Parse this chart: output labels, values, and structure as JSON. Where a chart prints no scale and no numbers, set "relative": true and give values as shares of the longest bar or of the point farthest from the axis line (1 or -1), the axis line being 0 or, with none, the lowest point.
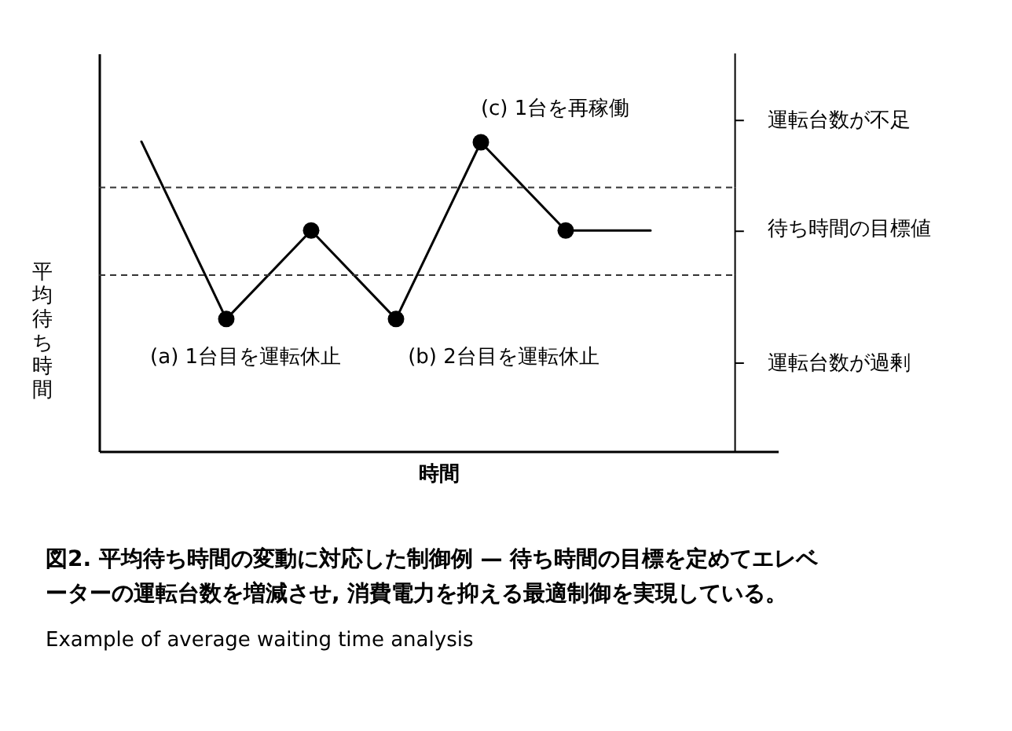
{
  "chart_data": {
    "type": "line",
    "relative": true,
    "xlabel": "時間",
    "ylabel": "平均待ち時間",
    "categories": [
      null,
      null,
      null,
      null,
      null,
      null,
      null
    ],
    "values": [
      1,
      0.427,
      0.713,
      0.427,
      0.998,
      0.713,
      0.713
    ],
    "color": "#000000",
    "marker": "circle",
    "line_style": "solid",
    "ref_lines": [
      {
        "axis": "y",
        "value": 0.852,
        "line_style": "dashed"
      },
      {
        "axis": "y",
        "value": 0.569,
        "line_style": "dashed"
      }
    ],
    "annotations": [
      "(a) 1台目を運転休止",
      "(b) 2台目を運転休止",
      "(c) 1台を再稼働",
      "運転台数が不足",
      "待ち時間の目標値",
      "運転台数が過剰",
      "Example of average waiting time analysis"
    ],
    "title": "図2. 平均待ち時間の変動に対応した制御例 — 待ち時間の目標を定めてエレベーターの運転台数を増減させ, 消費電力を抑える最適制御を実現している。"
  }
}
